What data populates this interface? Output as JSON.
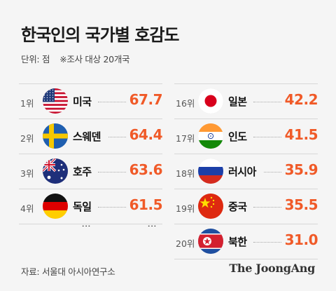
{
  "title": "한국인의 국가별 호감도",
  "unit_note": "단위: 점",
  "survey_note": "※조사 대상 20개국",
  "source": "자료: 서울대 아시아연구소",
  "logo": "The JoongAng",
  "colors": {
    "score": "#f05a28",
    "background": "#f5f5f5"
  },
  "chart_data": {
    "type": "table",
    "title": "한국인의 국가별 호감도",
    "unit": "점",
    "note": "※조사 대상 20개국",
    "columns": [
      {
        "rows": [
          {
            "rank": "1위",
            "country": "미국",
            "flag": "us-flag-icon",
            "score": 67.7,
            "score_label": "67.7"
          },
          {
            "rank": "2위",
            "country": "스웨덴",
            "flag": "sweden-flag-icon",
            "score": 64.4,
            "score_label": "64.4"
          },
          {
            "rank": "3위",
            "country": "호주",
            "flag": "australia-flag-icon",
            "score": 63.6,
            "score_label": "63.6"
          },
          {
            "rank": "4위",
            "country": "독일",
            "flag": "germany-flag-icon",
            "score": 61.5,
            "score_label": "61.5"
          }
        ]
      },
      {
        "rows": [
          {
            "rank": "16위",
            "country": "일본",
            "flag": "japan-flag-icon",
            "score": 42.2,
            "score_label": "42.2"
          },
          {
            "rank": "17위",
            "country": "인도",
            "flag": "india-flag-icon",
            "score": 41.5,
            "score_label": "41.5"
          },
          {
            "rank": "18위",
            "country": "러시아",
            "flag": "russia-flag-icon",
            "score": 35.9,
            "score_label": "35.9"
          },
          {
            "rank": "19위",
            "country": "중국",
            "flag": "china-flag-icon",
            "score": 35.5,
            "score_label": "35.5"
          },
          {
            "rank": "20위",
            "country": "북한",
            "flag": "north-korea-flag-icon",
            "score": 31.0,
            "score_label": "31.0"
          }
        ]
      }
    ]
  },
  "ellipsis": "⋮"
}
